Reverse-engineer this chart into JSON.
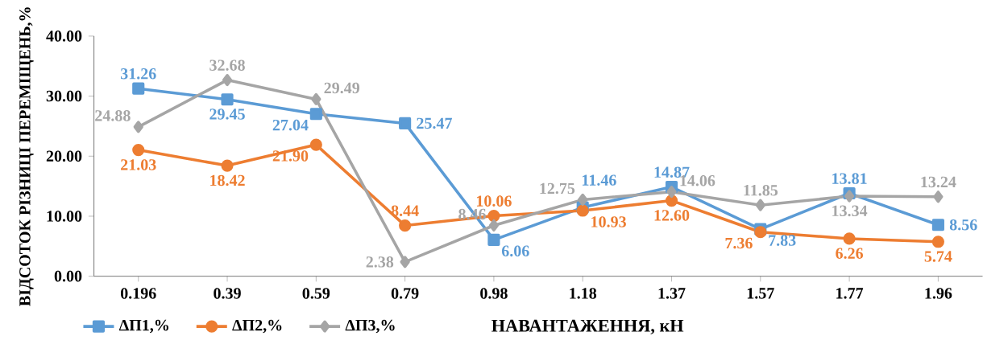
{
  "chart_data": {
    "type": "line",
    "ylabel": "ВІДСОТОК РІЗНИЦІ ПЕРЕМІЩЕНЬ,%",
    "xlabel": "НАВАНТАЖЕННЯ, кН",
    "categories": [
      "0.196",
      "0.39",
      "0.59",
      "0.79",
      "0.98",
      "1.18",
      "1.37",
      "1.57",
      "1.77",
      "1.96"
    ],
    "ylim": [
      0,
      40
    ],
    "yticks": [
      {
        "value": 0,
        "label": "0.00"
      },
      {
        "value": 10,
        "label": "10.00"
      },
      {
        "value": 20,
        "label": "20.00"
      },
      {
        "value": 30,
        "label": "30.00"
      },
      {
        "value": 40,
        "label": "40.00"
      }
    ],
    "legend": "bottom left",
    "grid": false,
    "line_style": "solid",
    "series": [
      {
        "name": "ΔП1,%",
        "color": "#5b9bd5",
        "marker": "square",
        "values": [
          31.26,
          29.45,
          27.04,
          25.47,
          6.06,
          11.46,
          14.87,
          7.83,
          13.81,
          8.56
        ],
        "value_labels": [
          "31.26",
          "29.45",
          "27.04",
          "25.47",
          "6.06",
          "11.46",
          "14.87",
          "7.83",
          "13.81",
          "8.56"
        ]
      },
      {
        "name": "ΔП2,%",
        "color": "#ed7d31",
        "marker": "circle",
        "values": [
          21.03,
          18.42,
          21.9,
          8.44,
          10.06,
          10.93,
          12.6,
          7.36,
          6.26,
          5.74
        ],
        "value_labels": [
          "21.03",
          "18.42",
          "21.90",
          "8.44",
          "10.06",
          "10.93",
          "12.60",
          "7.36",
          "6.26",
          "5.74"
        ]
      },
      {
        "name": "ΔП3,%",
        "color": "#a5a5a5",
        "marker": "diamond",
        "values": [
          24.88,
          32.68,
          29.49,
          2.38,
          8.46,
          12.75,
          14.06,
          11.85,
          13.34,
          13.24
        ],
        "value_labels": [
          "24.88",
          "32.68",
          "29.49",
          "2.38",
          "8.46",
          "12.75",
          "14.06",
          "11.85",
          "13.34",
          "13.24"
        ]
      }
    ]
  }
}
